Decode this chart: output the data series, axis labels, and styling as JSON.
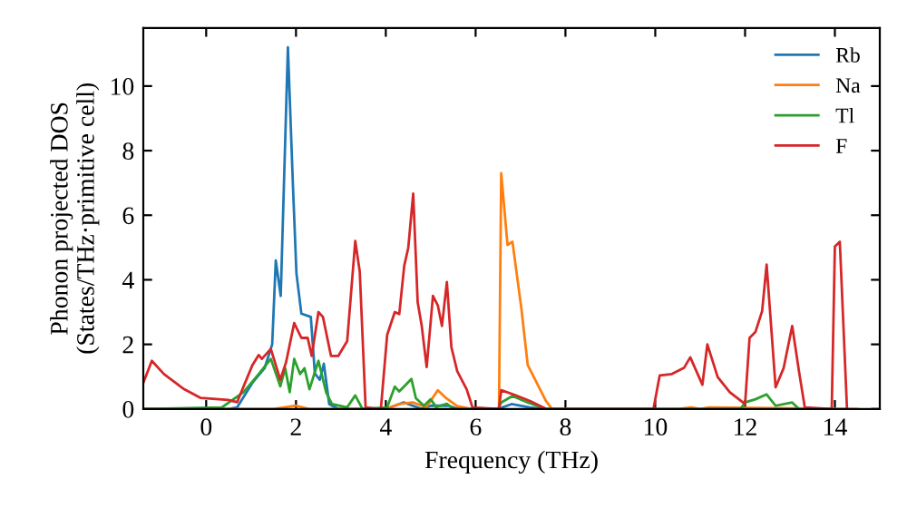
{
  "chart_data": {
    "type": "line",
    "xlabel": "Frequency (THz)",
    "ylabel": "Phonon projected DOS\n(States/THz·primitive cell)",
    "xlim": [
      -1.4,
      15
    ],
    "ylim": [
      0,
      11.8
    ],
    "xticks": [
      0,
      2,
      4,
      6,
      8,
      10,
      12,
      14
    ],
    "yticks": [
      0,
      2,
      4,
      6,
      8,
      10
    ],
    "grid": false,
    "legend": "top right",
    "line_style": "solid",
    "series": [
      {
        "name": "Rb",
        "color": "#1f77b4",
        "x": [
          -1.4,
          0.5,
          0.69,
          1.03,
          1.3,
          1.47,
          1.55,
          1.66,
          1.82,
          1.93,
          2.01,
          2.12,
          2.33,
          2.42,
          2.53,
          2.62,
          2.74,
          2.94,
          4.0,
          4.2,
          4.4,
          4.6,
          4.8,
          5.0,
          5.4,
          5.6,
          6.5,
          6.8,
          7.2,
          7.5
        ],
        "values": [
          0,
          0,
          0.05,
          0.81,
          1.26,
          2.0,
          4.6,
          3.5,
          11.2,
          7.0,
          4.2,
          2.95,
          2.85,
          1.1,
          0.9,
          1.4,
          0.15,
          0,
          0,
          0.1,
          0.2,
          0.1,
          0,
          0.1,
          0.1,
          0,
          0,
          0.15,
          0.05,
          0
        ]
      },
      {
        "name": "Na",
        "color": "#ff7f0e",
        "x": [
          -1.4,
          1.5,
          2.0,
          2.3,
          4.0,
          4.3,
          4.6,
          4.9,
          5.16,
          5.33,
          5.59,
          5.9,
          6.52,
          6.57,
          6.71,
          6.82,
          7.02,
          7.16,
          7.57,
          7.7,
          10.5,
          10.8,
          11.0,
          11.2,
          14.5
        ],
        "values": [
          0,
          0,
          0.1,
          0,
          0,
          0.15,
          0.2,
          0.05,
          0.58,
          0.35,
          0.09,
          0,
          0,
          7.3,
          5.08,
          5.18,
          3.1,
          1.36,
          0.24,
          0,
          0,
          0.05,
          0,
          0.05,
          0
        ]
      },
      {
        "name": "Tl",
        "color": "#2ca02c",
        "x": [
          -1.4,
          0.35,
          0.83,
          1.17,
          1.44,
          1.65,
          1.76,
          1.86,
          1.96,
          2.09,
          2.19,
          2.3,
          2.5,
          2.67,
          2.8,
          3.14,
          3.32,
          3.48,
          4.03,
          4.2,
          4.3,
          4.57,
          4.67,
          4.85,
          5.0,
          5.12,
          5.36,
          5.5,
          6.5,
          6.57,
          6.82,
          7.16,
          7.57,
          11.9,
          12.0,
          12.23,
          12.48,
          12.68,
          13.05,
          13.2
        ],
        "values": [
          0,
          0.05,
          0.52,
          1.08,
          1.55,
          0.7,
          1.26,
          0.52,
          1.55,
          1.08,
          1.26,
          0.61,
          1.49,
          0.52,
          0.15,
          0.05,
          0.42,
          0,
          0.05,
          0.69,
          0.54,
          0.93,
          0.33,
          0.1,
          0.3,
          0.06,
          0.16,
          0,
          0,
          0.2,
          0.4,
          0.2,
          0,
          0,
          0.2,
          0.3,
          0.45,
          0.1,
          0.2,
          0
        ]
      },
      {
        "name": "F",
        "color": "#d62728",
        "x": [
          -1.4,
          -1.21,
          -0.94,
          -0.49,
          -0.12,
          0.49,
          0.69,
          1.03,
          1.17,
          1.24,
          1.44,
          1.65,
          1.78,
          1.96,
          2.12,
          2.26,
          2.35,
          2.5,
          2.6,
          2.78,
          2.94,
          3.14,
          3.32,
          3.42,
          3.55,
          3.89,
          4.03,
          4.2,
          4.3,
          4.41,
          4.5,
          4.61,
          4.71,
          4.8,
          4.91,
          5.05,
          5.16,
          5.25,
          5.36,
          5.46,
          5.59,
          5.8,
          5.93,
          6.52,
          6.57,
          6.88,
          7.22,
          7.57,
          9.96,
          10.1,
          10.37,
          10.64,
          10.78,
          11.05,
          11.16,
          11.39,
          11.66,
          12.0,
          12.1,
          12.23,
          12.38,
          12.48,
          12.68,
          12.86,
          13.05,
          13.2,
          13.33,
          13.93,
          14.0,
          14.11,
          14.27
        ],
        "values": [
          0.81,
          1.49,
          1.08,
          0.61,
          0.34,
          0.28,
          0.21,
          1.36,
          1.67,
          1.55,
          1.86,
          0.9,
          1.45,
          2.66,
          2.2,
          2.2,
          1.64,
          3.0,
          2.85,
          1.64,
          1.64,
          2.1,
          5.2,
          4.25,
          0.05,
          0,
          2.29,
          3.0,
          2.94,
          4.43,
          4.99,
          6.67,
          3.3,
          2.57,
          1.3,
          3.5,
          3.2,
          2.57,
          3.93,
          1.92,
          1.17,
          0.61,
          0.05,
          0,
          0.58,
          0.43,
          0.24,
          0,
          0,
          1.04,
          1.08,
          1.27,
          1.6,
          0.75,
          2.0,
          0.99,
          0.52,
          0.15,
          2.2,
          2.38,
          3.03,
          4.47,
          0.67,
          1.27,
          2.57,
          1.17,
          0.05,
          0,
          5.03,
          5.18,
          0
        ]
      }
    ]
  }
}
